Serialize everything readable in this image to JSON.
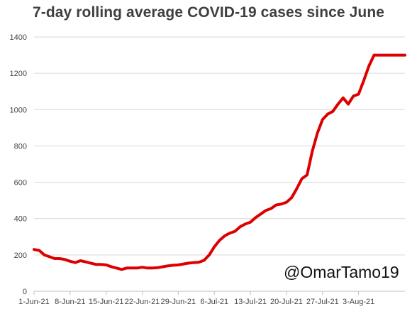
{
  "chart_data": {
    "type": "line",
    "title": "7-day rolling average COVID-19 cases since June",
    "xlabel": "",
    "ylabel": "",
    "ylim": [
      0,
      1400
    ],
    "yticks": [
      0,
      200,
      400,
      600,
      800,
      1000,
      1200,
      1400
    ],
    "xtick_labels": [
      "1-Jun-21",
      "8-Jun-21",
      "15-Jun-21",
      "22-Jun-21",
      "29-Jun-21",
      "6-Jul-21",
      "13-Jul-21",
      "20-Jul-21",
      "27-Jul-21",
      "3-Aug-21"
    ],
    "xtick_days": [
      0,
      7,
      14,
      21,
      28,
      35,
      42,
      49,
      56,
      63
    ],
    "x_start": "2021-06-01",
    "x_end": "2021-08-12",
    "grid": true,
    "line_color": "#dd0000",
    "series": [
      {
        "name": "",
        "x": [
          "2021-06-01",
          "2021-06-02",
          "2021-06-03",
          "2021-06-04",
          "2021-06-05",
          "2021-06-06",
          "2021-06-07",
          "2021-06-08",
          "2021-06-09",
          "2021-06-10",
          "2021-06-11",
          "2021-06-12",
          "2021-06-13",
          "2021-06-14",
          "2021-06-15",
          "2021-06-16",
          "2021-06-17",
          "2021-06-18",
          "2021-06-19",
          "2021-06-20",
          "2021-06-21",
          "2021-06-22",
          "2021-06-23",
          "2021-06-24",
          "2021-06-25",
          "2021-06-26",
          "2021-06-27",
          "2021-06-28",
          "2021-06-29",
          "2021-06-30",
          "2021-07-01",
          "2021-07-02",
          "2021-07-03",
          "2021-07-04",
          "2021-07-05",
          "2021-07-06",
          "2021-07-07",
          "2021-07-08",
          "2021-07-09",
          "2021-07-10",
          "2021-07-11",
          "2021-07-12",
          "2021-07-13",
          "2021-07-14",
          "2021-07-15",
          "2021-07-16",
          "2021-07-17",
          "2021-07-18",
          "2021-07-19",
          "2021-07-20",
          "2021-07-21",
          "2021-07-22",
          "2021-07-23",
          "2021-07-24",
          "2021-07-25",
          "2021-07-26",
          "2021-07-27",
          "2021-07-28",
          "2021-07-29",
          "2021-07-30",
          "2021-07-31",
          "2021-08-01",
          "2021-08-02",
          "2021-08-03",
          "2021-08-04",
          "2021-08-05",
          "2021-08-06",
          "2021-08-07",
          "2021-08-08",
          "2021-08-09",
          "2021-08-10",
          "2021-08-11",
          "2021-08-12"
        ],
        "values": [
          230,
          225,
          200,
          190,
          180,
          180,
          175,
          165,
          158,
          168,
          162,
          155,
          148,
          148,
          145,
          135,
          128,
          120,
          128,
          128,
          128,
          132,
          128,
          128,
          130,
          135,
          140,
          143,
          145,
          150,
          155,
          158,
          160,
          170,
          200,
          245,
          280,
          305,
          320,
          330,
          355,
          370,
          380,
          405,
          425,
          445,
          455,
          475,
          480,
          490,
          515,
          565,
          620,
          640,
          770,
          870,
          945,
          975,
          990,
          1030,
          1065,
          1030,
          1075,
          1085,
          1160,
          1240,
          1300,
          1300,
          1300,
          1300,
          1300,
          1300,
          1300
        ]
      }
    ]
  },
  "watermark": "@OmarTamo19"
}
